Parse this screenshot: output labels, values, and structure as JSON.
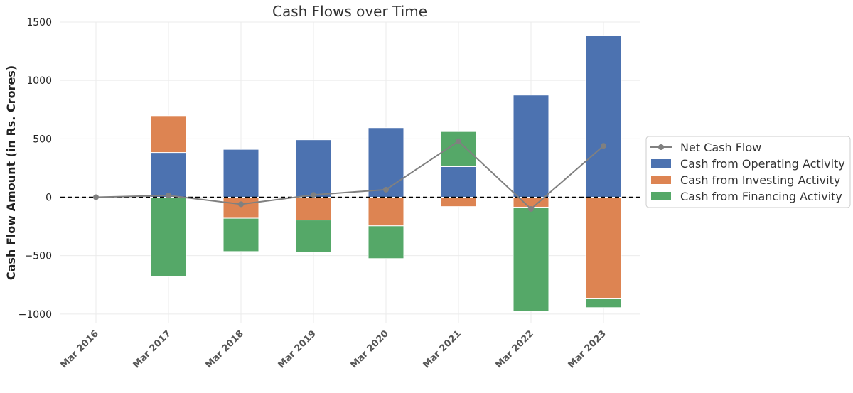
{
  "chart_data": {
    "type": "bar",
    "title": "Cash Flows over Time",
    "xlabel": "",
    "ylabel": "Cash Flow Amount (in Rs. Crores)",
    "ylim": [
      -1080,
      1500
    ],
    "yticks": [
      1500,
      1000,
      500,
      0,
      -500,
      -1000
    ],
    "ytick_labels": [
      "1500",
      "1000",
      "500",
      "0",
      "−500",
      "−1000"
    ],
    "categories": [
      "Mar 2016",
      "Mar 2017",
      "Mar 2018",
      "Mar 2019",
      "Mar 2020",
      "Mar 2021",
      "Mar 2022",
      "Mar 2023"
    ],
    "stacked": true,
    "grid": true,
    "legend_position": "right",
    "series": [
      {
        "name": "Cash from Operating Activity",
        "type": "bar",
        "color": "#4c72b0",
        "values": [
          0,
          383,
          410,
          492,
          595,
          262,
          875,
          1385
        ]
      },
      {
        "name": "Cash from Investing Activity",
        "type": "bar",
        "color": "#dd8452",
        "values": [
          0,
          315,
          -180,
          -195,
          -245,
          -80,
          -85,
          -870
        ]
      },
      {
        "name": "Cash from Financing Activity",
        "type": "bar",
        "color": "#55a868",
        "values": [
          0,
          -680,
          -285,
          -275,
          -280,
          300,
          -890,
          -75
        ]
      },
      {
        "name": "Net Cash Flow",
        "type": "line",
        "color": "#808080",
        "values": [
          0,
          15,
          -60,
          20,
          65,
          480,
          -100,
          440
        ]
      }
    ],
    "zero_line": {
      "style": "dashed",
      "color": "#000000"
    }
  }
}
